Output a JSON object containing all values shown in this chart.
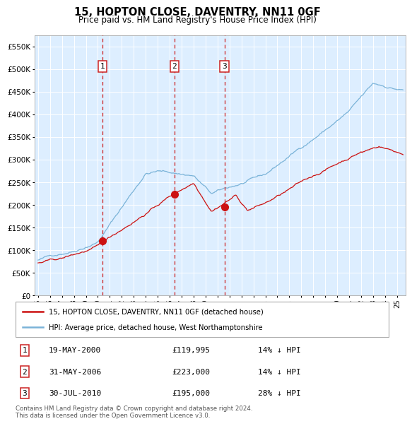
{
  "title": "15, HOPTON CLOSE, DAVENTRY, NN11 0GF",
  "subtitle": "Price paid vs. HM Land Registry's House Price Index (HPI)",
  "plot_bg_color": "#ddeeff",
  "grid_color": "#ffffff",
  "red_line_label": "15, HOPTON CLOSE, DAVENTRY, NN11 0GF (detached house)",
  "blue_line_label": "HPI: Average price, detached house, West Northamptonshire",
  "footer": "Contains HM Land Registry data © Crown copyright and database right 2024.\nThis data is licensed under the Open Government Licence v3.0.",
  "transactions": [
    {
      "num": 1,
      "date": "19-MAY-2000",
      "price": "£119,995",
      "pct": "14% ↓ HPI",
      "year": 2000.38
    },
    {
      "num": 2,
      "date": "31-MAY-2006",
      "price": "£223,000",
      "pct": "14% ↓ HPI",
      "year": 2006.41
    },
    {
      "num": 3,
      "date": "30-JUL-2010",
      "price": "£195,000",
      "pct": "28% ↓ HPI",
      "year": 2010.58
    }
  ],
  "transaction_prices": [
    119995,
    223000,
    195000
  ],
  "ylim": [
    0,
    575000
  ],
  "xlim_start": 1994.7,
  "xlim_end": 2025.7,
  "fig_bg": "#ffffff"
}
